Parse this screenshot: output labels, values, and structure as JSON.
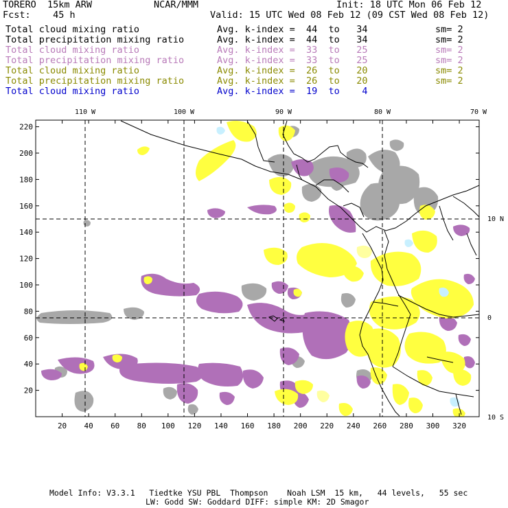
{
  "header": {
    "model": "TORERO  15km ARW",
    "org": "NCAR/MMM",
    "init": "Init: 18 UTC Mon 06 Feb 12",
    "fcst": "Fcst:    45 h",
    "valid": "Valid: 15 UTC Wed 08 Feb 12 (09 CST Wed 08 Feb 12)"
  },
  "legend": [
    {
      "label": "Total cloud mixing ratio",
      "kindex": "Avg. k-index =  44  to   34",
      "sm": "sm= 2",
      "color": "#000000"
    },
    {
      "label": "Total precipitation mixing ratio",
      "kindex": "Avg. k-index =  44  to   34",
      "sm": "sm= 2",
      "color": "#000000"
    },
    {
      "label": "Total cloud mixing ratio",
      "kindex": "Avg. k-index =  33  to   25",
      "sm": "sm= 2",
      "color": "#b87ab8"
    },
    {
      "label": "Total precipitation mixing ratio",
      "kindex": "Avg. k-index =  33  to   25",
      "sm": "sm= 2",
      "color": "#b87ab8"
    },
    {
      "label": "Total cloud mixing ratio",
      "kindex": "Avg. k-index =  26  to   20",
      "sm": "sm= 2",
      "color": "#8a8a00"
    },
    {
      "label": "Total precipitation mixing ratio",
      "kindex": "Avg. k-index =  26  to   20",
      "sm": "sm= 2",
      "color": "#8a8a00"
    },
    {
      "label": "Total cloud mixing ratio",
      "kindex": "Avg. k-index =  19  to    4",
      "sm": "",
      "color": "#0000cc"
    }
  ],
  "map": {
    "lon_labels": [
      "110 W",
      "100 W",
      "90 W",
      "80 W",
      "70 W"
    ],
    "lat_labels": [
      "10 N",
      "0",
      "10 S"
    ],
    "x_ticks": [
      "20",
      "40",
      "60",
      "80",
      "100",
      "120",
      "140",
      "160",
      "180",
      "200",
      "220",
      "240",
      "260",
      "280",
      "300",
      "320"
    ],
    "y_ticks": [
      "20",
      "40",
      "60",
      "80",
      "100",
      "120",
      "140",
      "160",
      "180",
      "200",
      "220"
    ],
    "fill_colors": {
      "gray": "#a8a8a8",
      "purple": "#b070b8",
      "yellow": "#ffff40",
      "light_yellow": "#ffffa0",
      "cyan": "#c8f0ff"
    }
  },
  "footer": {
    "line1": "Model Info: V3.3.1   Tiedtke YSU PBL  Thompson    Noah LSM  15 km,   44 levels,   55 sec",
    "line2": "LW: Godd SW: Goddard DIFF: simple KM: 2D Smagor"
  }
}
